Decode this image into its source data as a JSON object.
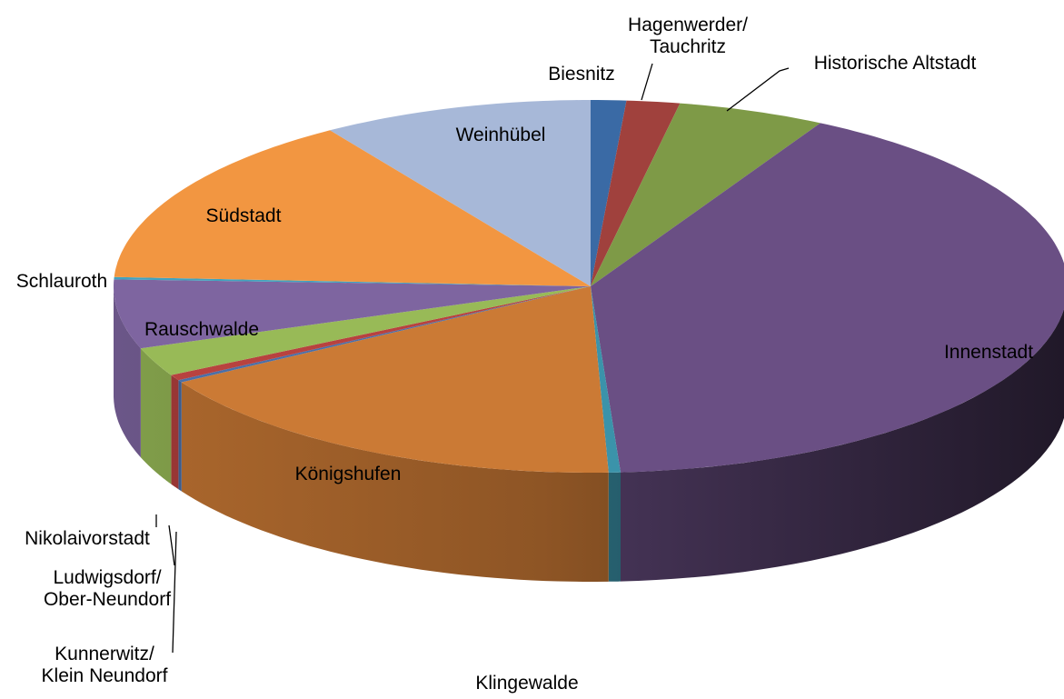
{
  "chart_data": {
    "type": "pie3d",
    "categories": [
      "Biesnitz",
      "Hagenwerder/\nTauchritz",
      "Historische Altstadt",
      "Innenstadt",
      "Klingewalde",
      "Königshufen",
      "Kunnerwitz/\nKlein Neundorf",
      "Ludwigsdorf/\nOber-Neundorf",
      "Nikolaivorstadt",
      "Rauschwalde",
      "Schlauroth",
      "Südstadt",
      "Weinhübel"
    ],
    "values": [
      1.2,
      1.8,
      5,
      41,
      0.4,
      17,
      0.2,
      0.5,
      2.5,
      6,
      0.2,
      15,
      9.2
    ],
    "colors": [
      "#3a6aa5",
      "#a0413d",
      "#7e9a47",
      "#6a4f84",
      "#3b93aa",
      "#cb7a35",
      "#4a6fa8",
      "#b8423f",
      "#98ba57",
      "#7e65a0",
      "#42a3be",
      "#f29641",
      "#a7b8d8"
    ]
  }
}
